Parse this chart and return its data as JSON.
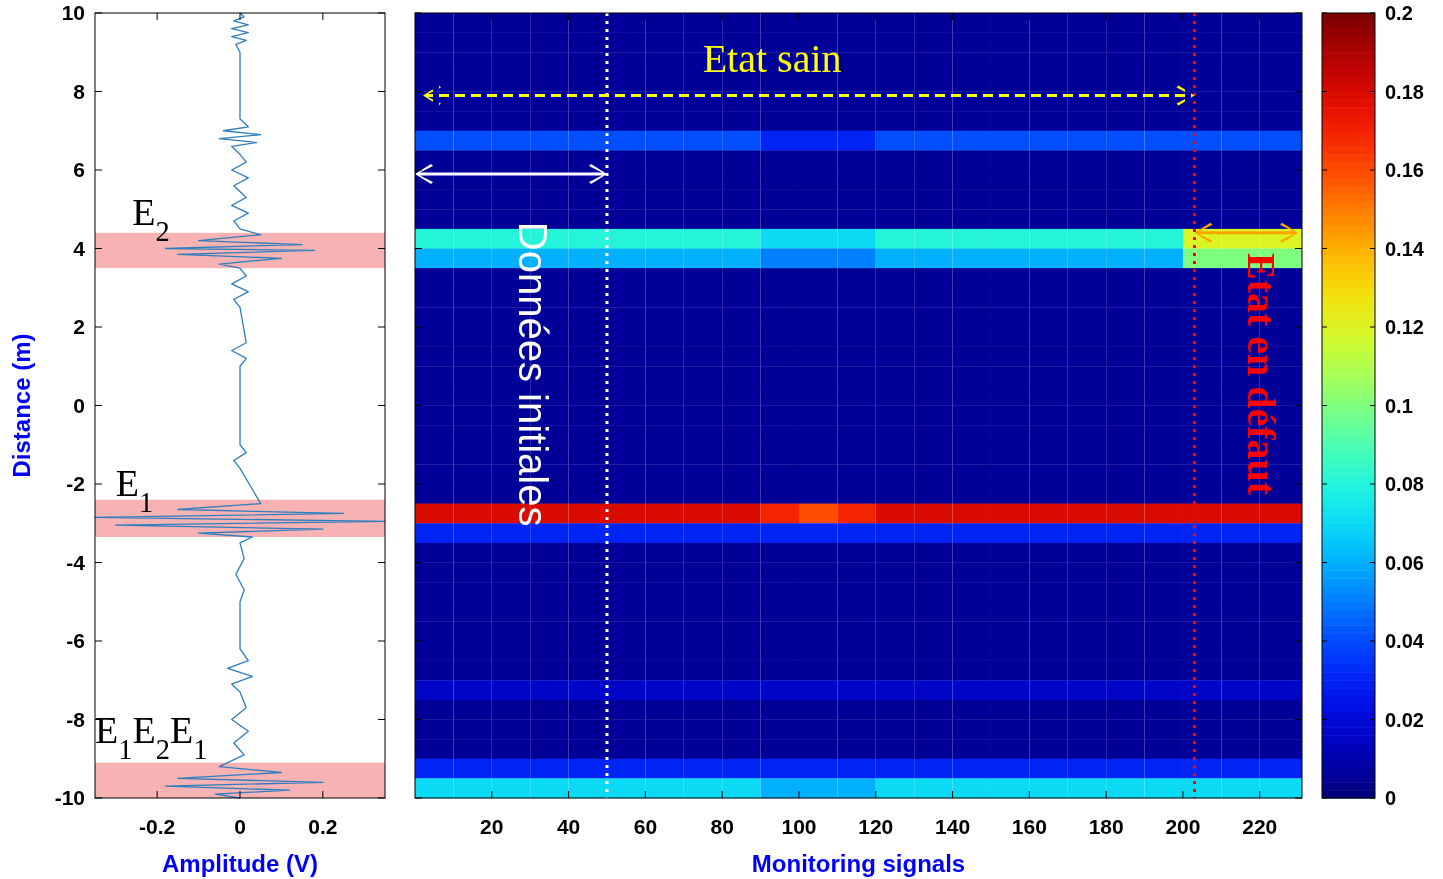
{
  "chart_data": [
    {
      "type": "line",
      "xlabel": "Amplitude (V)",
      "ylabel": "Distance (m)",
      "xlim": [
        -0.35,
        0.35
      ],
      "xticks": [
        -0.2,
        0,
        0.2
      ],
      "ylim": [
        -10,
        10
      ],
      "yticks": [
        -10,
        -8,
        -6,
        -4,
        -2,
        0,
        2,
        4,
        6,
        8,
        10
      ],
      "grid": false,
      "series": [
        {
          "color": "#2e7ebf",
          "x": [
            0,
            0.01,
            -0.015,
            0.02,
            -0.02,
            0.02,
            -0.02,
            0.015,
            -0.01,
            0,
            0,
            0.02,
            -0.04,
            0.05,
            -0.05,
            0.04,
            -0.02,
            0,
            0.015,
            -0.02,
            0.02,
            -0.015,
            0.015,
            -0.02,
            0.02,
            -0.015,
            0,
            0.05,
            -0.1,
            0.15,
            -0.18,
            0.18,
            -0.15,
            0.1,
            -0.05,
            0,
            0.015,
            -0.02,
            0.02,
            -0.015,
            0,
            0.015,
            -0.02,
            0.015,
            0,
            0,
            0.015,
            -0.015,
            0,
            0.05,
            -0.15,
            0.25,
            -0.35,
            0.35,
            -0.3,
            0.2,
            -0.1,
            0.03,
            0,
            0.01,
            -0.01,
            0.01,
            0,
            0,
            0.02,
            -0.03,
            0.03,
            -0.02,
            0,
            0.015,
            -0.02,
            0.02,
            -0.015,
            0.01,
            -0.05,
            0.1,
            -0.15,
            0.2,
            -0.18,
            0.12,
            -0.06,
            0
          ],
          "values": [
            10,
            9.9,
            9.8,
            9.7,
            9.6,
            9.5,
            9.4,
            9.3,
            9.2,
            9.0,
            7.3,
            7.1,
            7.0,
            6.9,
            6.8,
            6.7,
            6.6,
            6.4,
            6.2,
            6.0,
            5.8,
            5.6,
            5.3,
            5.1,
            4.9,
            4.7,
            4.5,
            4.35,
            4.2,
            4.1,
            4.0,
            3.95,
            3.85,
            3.75,
            3.6,
            3.5,
            3.3,
            3.1,
            2.9,
            2.7,
            2.5,
            1.6,
            1.4,
            1.2,
            1.0,
            -1.0,
            -1.2,
            -1.4,
            -1.6,
            -2.5,
            -2.65,
            -2.75,
            -2.85,
            -2.95,
            -3.05,
            -3.15,
            -3.25,
            -3.35,
            -3.5,
            -3.9,
            -4.3,
            -4.7,
            -5,
            -6.2,
            -6.5,
            -6.7,
            -6.9,
            -7.1,
            -7.3,
            -7.7,
            -8.0,
            -8.3,
            -8.6,
            -8.9,
            -9.2,
            -9.35,
            -9.5,
            -9.6,
            -9.7,
            -9.8,
            -9.9,
            -10
          ]
        }
      ],
      "bands": [
        {
          "axis": "y",
          "from": 3.5,
          "to": 4.4,
          "color": "#f7b3b3"
        },
        {
          "axis": "y",
          "from": -3.35,
          "to": -2.4,
          "color": "#f7b3b3"
        },
        {
          "axis": "y",
          "from": -10,
          "to": -9.1,
          "color": "#f7b3b3"
        }
      ],
      "annotations": [
        "E$_{2}$",
        "E$_{1}$",
        "E$_{1}$E$_{2}$E$_{1}$"
      ]
    },
    {
      "type": "heatmap",
      "xlabel": "Monitoring signals",
      "xlim": [
        0,
        231
      ],
      "xticks": [
        20,
        40,
        60,
        80,
        100,
        120,
        140,
        160,
        180,
        200,
        220
      ],
      "ylim": [
        -10,
        10
      ],
      "yticks": [
        -10,
        -8,
        -6,
        -4,
        -2,
        0,
        2,
        4,
        6,
        8,
        10
      ],
      "tick_labels": "x",
      "x": [
        5,
        15,
        25,
        35,
        45,
        55,
        65,
        75,
        85,
        95,
        105,
        115,
        125,
        135,
        145,
        155,
        165,
        175,
        185,
        195,
        205,
        215,
        225
      ],
      "clim": [
        0,
        0.2
      ],
      "cticks": [
        0,
        0.02,
        0.04,
        0.06,
        0.08,
        0.1,
        0.12,
        0.14,
        0.16,
        0.18,
        0.2
      ],
      "cells": [
        [
          0.005,
          0.005,
          0.005,
          0.005,
          0.005,
          0.005,
          0.005,
          0.005,
          0.005,
          0.005,
          0.005,
          0.005,
          0.005,
          0.005,
          0.005,
          0.005,
          0.005,
          0.005,
          0.005,
          0.005,
          0.005,
          0.005,
          0.005
        ],
        [
          0.005,
          0.005,
          0.005,
          0.005,
          0.005,
          0.005,
          0.005,
          0.005,
          0.005,
          0.005,
          0.005,
          0.005,
          0.005,
          0.005,
          0.005,
          0.005,
          0.005,
          0.005,
          0.005,
          0.005,
          0.005,
          0.005,
          0.005
        ],
        [
          0.005,
          0.005,
          0.005,
          0.005,
          0.005,
          0.005,
          0.005,
          0.005,
          0.005,
          0.005,
          0.005,
          0.005,
          0.005,
          0.005,
          0.005,
          0.005,
          0.005,
          0.005,
          0.005,
          0.005,
          0.005,
          0.005,
          0.005
        ],
        [
          0.005,
          0.005,
          0.005,
          0.005,
          0.005,
          0.005,
          0.005,
          0.005,
          0.005,
          0.005,
          0.005,
          0.005,
          0.005,
          0.005,
          0.005,
          0.005,
          0.005,
          0.005,
          0.005,
          0.005,
          0.005,
          0.005,
          0.005
        ],
        [
          0.005,
          0.005,
          0.005,
          0.005,
          0.005,
          0.005,
          0.005,
          0.005,
          0.005,
          0.005,
          0.005,
          0.005,
          0.005,
          0.005,
          0.005,
          0.005,
          0.005,
          0.005,
          0.005,
          0.005,
          0.005,
          0.005,
          0.005
        ],
        [
          0.005,
          0.005,
          0.005,
          0.005,
          0.005,
          0.005,
          0.005,
          0.005,
          0.005,
          0.005,
          0.005,
          0.005,
          0.005,
          0.005,
          0.005,
          0.005,
          0.005,
          0.005,
          0.005,
          0.005,
          0.005,
          0.005,
          0.005
        ],
        [
          0.04,
          0.04,
          0.04,
          0.04,
          0.04,
          0.04,
          0.04,
          0.04,
          0.04,
          0.03,
          0.03,
          0.03,
          0.04,
          0.04,
          0.04,
          0.04,
          0.04,
          0.04,
          0.04,
          0.04,
          0.04,
          0.04,
          0.04
        ],
        [
          0.005,
          0.005,
          0.005,
          0.005,
          0.005,
          0.005,
          0.005,
          0.005,
          0.005,
          0.005,
          0.005,
          0.005,
          0.005,
          0.005,
          0.005,
          0.005,
          0.005,
          0.005,
          0.005,
          0.005,
          0.005,
          0.005,
          0.005
        ],
        [
          0.005,
          0.005,
          0.005,
          0.005,
          0.005,
          0.005,
          0.005,
          0.005,
          0.005,
          0.005,
          0.005,
          0.005,
          0.005,
          0.005,
          0.005,
          0.005,
          0.005,
          0.005,
          0.005,
          0.005,
          0.005,
          0.005,
          0.005
        ],
        [
          0.005,
          0.005,
          0.005,
          0.005,
          0.005,
          0.005,
          0.005,
          0.005,
          0.005,
          0.005,
          0.005,
          0.005,
          0.005,
          0.005,
          0.005,
          0.005,
          0.005,
          0.005,
          0.005,
          0.005,
          0.005,
          0.005,
          0.005
        ],
        [
          0.005,
          0.005,
          0.005,
          0.005,
          0.005,
          0.005,
          0.005,
          0.005,
          0.005,
          0.005,
          0.005,
          0.005,
          0.005,
          0.005,
          0.005,
          0.005,
          0.005,
          0.005,
          0.005,
          0.005,
          0.005,
          0.005,
          0.005
        ],
        [
          0.08,
          0.08,
          0.08,
          0.08,
          0.08,
          0.08,
          0.08,
          0.08,
          0.08,
          0.07,
          0.07,
          0.07,
          0.08,
          0.08,
          0.08,
          0.08,
          0.08,
          0.08,
          0.08,
          0.08,
          0.12,
          0.12,
          0.12
        ],
        [
          0.06,
          0.06,
          0.06,
          0.06,
          0.06,
          0.06,
          0.06,
          0.06,
          0.06,
          0.05,
          0.05,
          0.05,
          0.06,
          0.06,
          0.06,
          0.06,
          0.06,
          0.06,
          0.06,
          0.06,
          0.1,
          0.1,
          0.1
        ],
        [
          0.005,
          0.005,
          0.005,
          0.005,
          0.005,
          0.005,
          0.005,
          0.005,
          0.005,
          0.005,
          0.005,
          0.005,
          0.005,
          0.005,
          0.005,
          0.005,
          0.005,
          0.005,
          0.005,
          0.005,
          0.005,
          0.005,
          0.005
        ],
        [
          0.005,
          0.005,
          0.005,
          0.005,
          0.005,
          0.005,
          0.005,
          0.005,
          0.005,
          0.005,
          0.005,
          0.005,
          0.005,
          0.005,
          0.005,
          0.005,
          0.005,
          0.005,
          0.005,
          0.005,
          0.005,
          0.005,
          0.005
        ],
        [
          0.005,
          0.005,
          0.005,
          0.005,
          0.005,
          0.005,
          0.005,
          0.005,
          0.005,
          0.005,
          0.005,
          0.005,
          0.005,
          0.005,
          0.005,
          0.005,
          0.005,
          0.005,
          0.005,
          0.005,
          0.005,
          0.005,
          0.005
        ],
        [
          0.005,
          0.005,
          0.005,
          0.005,
          0.005,
          0.005,
          0.005,
          0.005,
          0.005,
          0.005,
          0.005,
          0.005,
          0.005,
          0.005,
          0.005,
          0.005,
          0.005,
          0.005,
          0.005,
          0.005,
          0.005,
          0.005,
          0.005
        ],
        [
          0.005,
          0.005,
          0.005,
          0.005,
          0.005,
          0.005,
          0.005,
          0.005,
          0.005,
          0.005,
          0.005,
          0.005,
          0.005,
          0.005,
          0.005,
          0.005,
          0.005,
          0.005,
          0.005,
          0.005,
          0.005,
          0.005,
          0.005
        ],
        [
          0.005,
          0.005,
          0.005,
          0.005,
          0.005,
          0.005,
          0.005,
          0.005,
          0.005,
          0.005,
          0.005,
          0.005,
          0.005,
          0.005,
          0.005,
          0.005,
          0.005,
          0.005,
          0.005,
          0.005,
          0.005,
          0.005,
          0.005
        ],
        [
          0.005,
          0.005,
          0.005,
          0.005,
          0.005,
          0.005,
          0.005,
          0.005,
          0.005,
          0.005,
          0.005,
          0.005,
          0.005,
          0.005,
          0.005,
          0.005,
          0.005,
          0.005,
          0.005,
          0.005,
          0.005,
          0.005,
          0.005
        ],
        [
          0.005,
          0.005,
          0.005,
          0.005,
          0.005,
          0.005,
          0.005,
          0.005,
          0.005,
          0.005,
          0.005,
          0.005,
          0.005,
          0.005,
          0.005,
          0.005,
          0.005,
          0.005,
          0.005,
          0.005,
          0.005,
          0.005,
          0.005
        ],
        [
          0.005,
          0.005,
          0.005,
          0.005,
          0.005,
          0.005,
          0.005,
          0.005,
          0.005,
          0.005,
          0.005,
          0.005,
          0.005,
          0.005,
          0.005,
          0.005,
          0.005,
          0.005,
          0.005,
          0.005,
          0.005,
          0.005,
          0.005
        ],
        [
          0.005,
          0.005,
          0.005,
          0.005,
          0.005,
          0.005,
          0.005,
          0.005,
          0.005,
          0.005,
          0.005,
          0.005,
          0.005,
          0.005,
          0.005,
          0.005,
          0.005,
          0.005,
          0.005,
          0.005,
          0.005,
          0.005,
          0.005
        ],
        [
          0.005,
          0.005,
          0.005,
          0.005,
          0.005,
          0.005,
          0.005,
          0.005,
          0.005,
          0.005,
          0.005,
          0.005,
          0.005,
          0.005,
          0.005,
          0.005,
          0.005,
          0.005,
          0.005,
          0.005,
          0.005,
          0.005,
          0.005
        ],
        [
          0.005,
          0.005,
          0.005,
          0.005,
          0.005,
          0.005,
          0.005,
          0.005,
          0.005,
          0.005,
          0.005,
          0.005,
          0.005,
          0.005,
          0.005,
          0.005,
          0.005,
          0.005,
          0.005,
          0.005,
          0.005,
          0.005,
          0.005
        ],
        [
          0.18,
          0.18,
          0.18,
          0.18,
          0.18,
          0.18,
          0.18,
          0.18,
          0.18,
          0.17,
          0.16,
          0.17,
          0.18,
          0.18,
          0.18,
          0.18,
          0.18,
          0.18,
          0.18,
          0.18,
          0.18,
          0.18,
          0.18
        ],
        [
          0.03,
          0.03,
          0.03,
          0.03,
          0.03,
          0.03,
          0.03,
          0.03,
          0.03,
          0.03,
          0.03,
          0.03,
          0.03,
          0.03,
          0.03,
          0.03,
          0.03,
          0.03,
          0.03,
          0.03,
          0.03,
          0.03,
          0.03
        ],
        [
          0.005,
          0.005,
          0.005,
          0.005,
          0.005,
          0.005,
          0.005,
          0.005,
          0.005,
          0.005,
          0.005,
          0.005,
          0.005,
          0.005,
          0.005,
          0.005,
          0.005,
          0.005,
          0.005,
          0.005,
          0.005,
          0.005,
          0.005
        ],
        [
          0.005,
          0.005,
          0.005,
          0.005,
          0.005,
          0.005,
          0.005,
          0.005,
          0.005,
          0.005,
          0.005,
          0.005,
          0.005,
          0.005,
          0.005,
          0.005,
          0.005,
          0.005,
          0.005,
          0.005,
          0.005,
          0.005,
          0.005
        ],
        [
          0.005,
          0.005,
          0.005,
          0.005,
          0.005,
          0.005,
          0.005,
          0.005,
          0.005,
          0.005,
          0.005,
          0.005,
          0.005,
          0.005,
          0.005,
          0.005,
          0.005,
          0.005,
          0.005,
          0.005,
          0.005,
          0.005,
          0.005
        ],
        [
          0.005,
          0.005,
          0.005,
          0.005,
          0.005,
          0.005,
          0.005,
          0.005,
          0.005,
          0.005,
          0.005,
          0.005,
          0.005,
          0.005,
          0.005,
          0.005,
          0.005,
          0.005,
          0.005,
          0.005,
          0.005,
          0.005,
          0.005
        ],
        [
          0.005,
          0.005,
          0.005,
          0.005,
          0.005,
          0.005,
          0.005,
          0.005,
          0.005,
          0.005,
          0.005,
          0.005,
          0.005,
          0.005,
          0.005,
          0.005,
          0.005,
          0.005,
          0.005,
          0.005,
          0.005,
          0.005,
          0.005
        ],
        [
          0.005,
          0.005,
          0.005,
          0.005,
          0.005,
          0.005,
          0.005,
          0.005,
          0.005,
          0.005,
          0.005,
          0.005,
          0.005,
          0.005,
          0.005,
          0.005,
          0.005,
          0.005,
          0.005,
          0.005,
          0.005,
          0.005,
          0.005
        ],
        [
          0.005,
          0.005,
          0.005,
          0.005,
          0.005,
          0.005,
          0.005,
          0.005,
          0.005,
          0.005,
          0.005,
          0.005,
          0.005,
          0.005,
          0.005,
          0.005,
          0.005,
          0.005,
          0.005,
          0.005,
          0.005,
          0.005,
          0.005
        ],
        [
          0.015,
          0.015,
          0.015,
          0.015,
          0.015,
          0.015,
          0.015,
          0.015,
          0.015,
          0.015,
          0.015,
          0.015,
          0.015,
          0.015,
          0.015,
          0.015,
          0.015,
          0.015,
          0.015,
          0.015,
          0.015,
          0.015,
          0.015
        ],
        [
          0.005,
          0.005,
          0.005,
          0.005,
          0.005,
          0.005,
          0.005,
          0.005,
          0.005,
          0.005,
          0.005,
          0.005,
          0.005,
          0.005,
          0.005,
          0.005,
          0.005,
          0.005,
          0.005,
          0.005,
          0.005,
          0.005,
          0.005
        ],
        [
          0.005,
          0.005,
          0.005,
          0.005,
          0.005,
          0.005,
          0.005,
          0.005,
          0.005,
          0.005,
          0.005,
          0.005,
          0.005,
          0.005,
          0.005,
          0.005,
          0.005,
          0.005,
          0.005,
          0.005,
          0.005,
          0.005,
          0.005
        ],
        [
          0.005,
          0.005,
          0.005,
          0.005,
          0.005,
          0.005,
          0.005,
          0.005,
          0.005,
          0.005,
          0.005,
          0.005,
          0.005,
          0.005,
          0.005,
          0.005,
          0.005,
          0.005,
          0.005,
          0.005,
          0.005,
          0.005,
          0.005
        ],
        [
          0.03,
          0.03,
          0.03,
          0.03,
          0.03,
          0.03,
          0.03,
          0.03,
          0.03,
          0.03,
          0.03,
          0.03,
          0.03,
          0.03,
          0.03,
          0.03,
          0.03,
          0.03,
          0.03,
          0.03,
          0.03,
          0.03,
          0.03
        ],
        [
          0.07,
          0.07,
          0.07,
          0.07,
          0.07,
          0.07,
          0.07,
          0.07,
          0.07,
          0.06,
          0.06,
          0.06,
          0.07,
          0.07,
          0.07,
          0.07,
          0.07,
          0.07,
          0.07,
          0.07,
          0.07,
          0.07,
          0.07
        ]
      ],
      "ref_lines": [
        {
          "axis": "x",
          "value": 50,
          "color": "#ffffff",
          "line_style": "dotted"
        },
        {
          "axis": "x",
          "value": 203,
          "color": "#ff0000",
          "line_style": "dotted"
        }
      ],
      "annotations": [
        "Etat sain",
        "Données initiales",
        "Etat en défaut"
      ]
    }
  ]
}
